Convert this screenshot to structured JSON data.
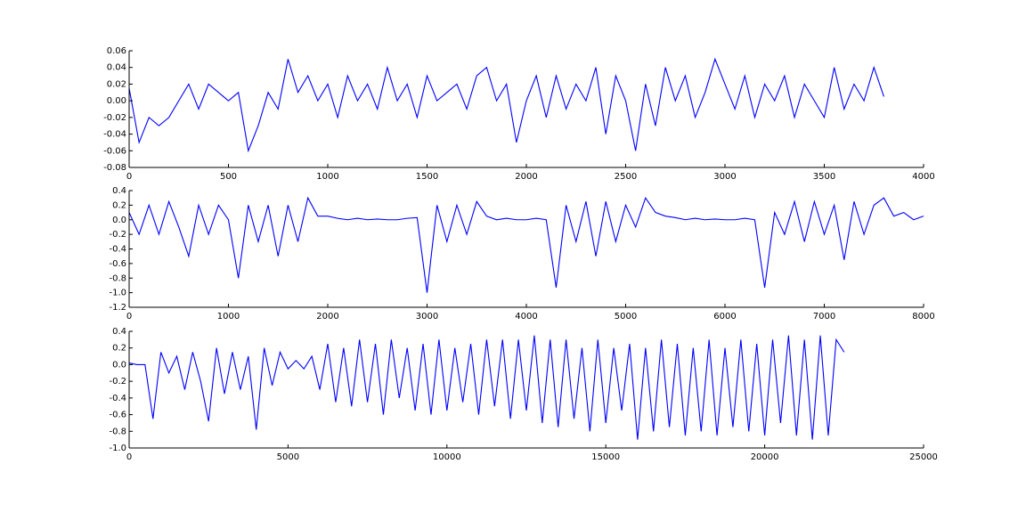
{
  "chart_data": [
    {
      "type": "line",
      "color": "#0000ff",
      "x": [
        0,
        50,
        100,
        150,
        200,
        250,
        300,
        350,
        400,
        450,
        500,
        550,
        600,
        650,
        700,
        750,
        800,
        850,
        900,
        950,
        1000,
        1050,
        1100,
        1150,
        1200,
        1250,
        1300,
        1350,
        1400,
        1450,
        1500,
        1550,
        1600,
        1650,
        1700,
        1750,
        1800,
        1850,
        1900,
        1950,
        2000,
        2050,
        2100,
        2150,
        2200,
        2250,
        2300,
        2350,
        2400,
        2450,
        2500,
        2550,
        2600,
        2650,
        2700,
        2750,
        2800,
        2850,
        2900,
        2950,
        3000,
        3050,
        3100,
        3150,
        3200,
        3250,
        3300,
        3350,
        3400,
        3450,
        3500,
        3550,
        3600,
        3650,
        3700,
        3750,
        3800
      ],
      "values": [
        0.015,
        -0.05,
        -0.02,
        -0.03,
        -0.02,
        0.0,
        0.02,
        -0.01,
        0.02,
        0.01,
        0.0,
        0.01,
        -0.06,
        -0.03,
        0.01,
        -0.01,
        0.05,
        0.01,
        0.03,
        0.0,
        0.02,
        -0.02,
        0.03,
        0.0,
        0.02,
        -0.01,
        0.04,
        0.0,
        0.02,
        -0.02,
        0.03,
        0.0,
        0.01,
        0.02,
        -0.01,
        0.03,
        0.04,
        0.0,
        0.02,
        -0.05,
        0.0,
        0.03,
        -0.02,
        0.03,
        -0.01,
        0.02,
        0.0,
        0.04,
        -0.04,
        0.03,
        0.0,
        -0.06,
        0.02,
        -0.03,
        0.04,
        0.0,
        0.03,
        -0.02,
        0.01,
        0.05,
        0.02,
        -0.01,
        0.03,
        -0.02,
        0.02,
        0.0,
        0.03,
        -0.02,
        0.02,
        0.0,
        -0.02,
        0.04,
        -0.01,
        0.02,
        0.0,
        0.04,
        0.005
      ],
      "xlim": [
        0,
        4000
      ],
      "xticks": [
        0,
        500,
        1000,
        1500,
        2000,
        2500,
        3000,
        3500,
        4000
      ],
      "ylim": [
        -0.08,
        0.06
      ],
      "yticks": [
        -0.08,
        -0.06,
        -0.04,
        -0.02,
        {
          "value": 0,
          "label": "0.00"
        },
        0.02,
        0.04,
        0.06
      ]
    },
    {
      "type": "line",
      "color": "#0000ff",
      "x": [
        0,
        100,
        200,
        300,
        400,
        500,
        600,
        700,
        800,
        900,
        1000,
        1100,
        1200,
        1300,
        1400,
        1500,
        1600,
        1700,
        1800,
        1900,
        2000,
        2100,
        2200,
        2300,
        2400,
        2500,
        2600,
        2700,
        2800,
        2900,
        3000,
        3100,
        3200,
        3300,
        3400,
        3500,
        3600,
        3700,
        3800,
        3900,
        4000,
        4100,
        4200,
        4300,
        4400,
        4500,
        4600,
        4700,
        4800,
        4900,
        5000,
        5100,
        5200,
        5300,
        5400,
        5500,
        5600,
        5700,
        5800,
        5900,
        6000,
        6100,
        6200,
        6300,
        6400,
        6500,
        6600,
        6700,
        6800,
        6900,
        7000,
        7100,
        7200,
        7300,
        7400,
        7500,
        7600,
        7700,
        7800,
        7900,
        8000
      ],
      "values": [
        0.1,
        -0.2,
        0.2,
        -0.2,
        0.25,
        -0.1,
        -0.5,
        0.2,
        -0.2,
        0.2,
        0.0,
        -0.8,
        0.2,
        -0.3,
        0.2,
        -0.5,
        0.2,
        -0.3,
        0.3,
        0.05,
        0.05,
        0.02,
        0.0,
        0.02,
        0.0,
        0.01,
        0.0,
        0.0,
        0.02,
        0.03,
        -1.0,
        0.2,
        -0.3,
        0.2,
        -0.2,
        0.25,
        0.05,
        0.0,
        0.02,
        0.0,
        0.0,
        0.02,
        0.0,
        -0.93,
        0.2,
        -0.3,
        0.25,
        -0.5,
        0.25,
        -0.3,
        0.2,
        -0.1,
        0.3,
        0.1,
        0.05,
        0.03,
        0.0,
        0.02,
        0.0,
        0.01,
        0.0,
        0.0,
        0.02,
        0.0,
        -0.93,
        0.1,
        -0.2,
        0.25,
        -0.3,
        0.25,
        -0.2,
        0.2,
        -0.55,
        0.25,
        -0.2,
        0.2,
        0.3,
        0.05,
        0.1,
        0.0,
        0.05
      ],
      "xlim": [
        0,
        8000
      ],
      "xticks": [
        0,
        1000,
        2000,
        3000,
        4000,
        5000,
        6000,
        7000,
        8000
      ],
      "ylim": [
        -1.2,
        0.4
      ],
      "yticks": [
        -1.2,
        {
          "value": -1,
          "label": "-1.0"
        },
        -0.8,
        -0.6,
        -0.4,
        -0.2,
        {
          "value": 0,
          "label": "0.0"
        },
        0.2,
        0.4
      ]
    },
    {
      "type": "line",
      "color": "#0000ff",
      "x": [
        0,
        250,
        500,
        750,
        1000,
        1250,
        1500,
        1750,
        2000,
        2250,
        2500,
        2750,
        3000,
        3250,
        3500,
        3750,
        4000,
        4250,
        4500,
        4750,
        5000,
        5250,
        5500,
        5750,
        6000,
        6250,
        6500,
        6750,
        7000,
        7250,
        7500,
        7750,
        8000,
        8250,
        8500,
        8750,
        9000,
        9250,
        9500,
        9750,
        10000,
        10250,
        10500,
        10750,
        11000,
        11250,
        11500,
        11750,
        12000,
        12250,
        12500,
        12750,
        13000,
        13250,
        13500,
        13750,
        14000,
        14250,
        14500,
        14750,
        15000,
        15250,
        15500,
        15750,
        16000,
        16250,
        16500,
        16750,
        17000,
        17250,
        17500,
        17750,
        18000,
        18250,
        18500,
        18750,
        19000,
        19250,
        19500,
        19750,
        20000,
        20250,
        20500,
        20750,
        21000,
        21250,
        21500,
        21750,
        22000,
        22250,
        22500
      ],
      "values": [
        0.02,
        0.0,
        0.0,
        -0.65,
        0.15,
        -0.1,
        0.1,
        -0.3,
        0.15,
        -0.2,
        -0.68,
        0.2,
        -0.35,
        0.15,
        -0.3,
        0.1,
        -0.78,
        0.2,
        -0.25,
        0.15,
        -0.05,
        0.05,
        -0.05,
        0.1,
        -0.3,
        0.25,
        -0.45,
        0.2,
        -0.5,
        0.3,
        -0.45,
        0.25,
        -0.6,
        0.3,
        -0.4,
        0.2,
        -0.55,
        0.25,
        -0.6,
        0.3,
        -0.55,
        0.2,
        -0.45,
        0.25,
        -0.6,
        0.3,
        -0.5,
        0.3,
        -0.65,
        0.3,
        -0.55,
        0.35,
        -0.7,
        0.3,
        -0.75,
        0.3,
        -0.65,
        0.2,
        -0.8,
        0.3,
        -0.7,
        0.2,
        -0.55,
        0.25,
        -0.9,
        0.2,
        -0.8,
        0.3,
        -0.75,
        0.25,
        -0.85,
        0.2,
        -0.8,
        0.3,
        -0.85,
        0.2,
        -0.75,
        0.3,
        -0.8,
        0.25,
        -0.85,
        0.3,
        -0.7,
        0.35,
        -0.85,
        0.3,
        -0.9,
        0.35,
        -0.85,
        0.3,
        0.15
      ],
      "xlim": [
        0,
        25000
      ],
      "xticks": [
        0,
        5000,
        10000,
        15000,
        20000,
        25000
      ],
      "ylim": [
        -1,
        0.4
      ],
      "yticks": [
        {
          "value": -1,
          "label": "-1.0"
        },
        -0.8,
        -0.6,
        -0.4,
        -0.2,
        {
          "value": 0,
          "label": "0.0"
        },
        0.2,
        0.4
      ]
    }
  ]
}
